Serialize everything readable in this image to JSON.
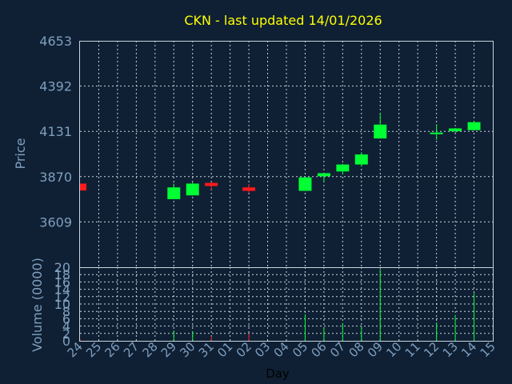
{
  "chart_data": {
    "type": "candlestick",
    "title": "CKN - last updated 14/01/2026",
    "xlabel": "Day",
    "ylabel": "Price",
    "volume_label": "Volume (0000)",
    "x_tick_labels": [
      "24",
      "25",
      "26",
      "27",
      "28",
      "29",
      "30",
      "31",
      "01",
      "02",
      "03",
      "04",
      "05",
      "06",
      "07",
      "08",
      "09",
      "10",
      "11",
      "12",
      "13",
      "14",
      "15"
    ],
    "y_ticks": [
      3609,
      3870,
      4131,
      4392,
      4653
    ],
    "ylim": [
      3348,
      4653
    ],
    "volume_ticks": [
      0,
      2,
      4,
      6,
      8,
      10,
      12,
      14,
      16,
      18,
      20
    ],
    "volume_ylim": [
      0,
      20
    ],
    "grid": true,
    "colors": {
      "up": "#00ff33",
      "down": "#ff1a1a",
      "title": "#ffff00",
      "axis_text": "#7f9fbf",
      "background": "#0f2034"
    },
    "candles": [
      {
        "day": "24",
        "open": 3830,
        "close": 3790,
        "high": 3830,
        "low": 3790,
        "volume": 0.5
      },
      {
        "day": "29",
        "open": 3740,
        "close": 3808,
        "high": 3830,
        "low": 3740,
        "volume": 2.8
      },
      {
        "day": "30",
        "open": 3762,
        "close": 3830,
        "high": 3836,
        "low": 3762,
        "volume": 2.6
      },
      {
        "day": "31",
        "open": 3834,
        "close": 3816,
        "high": 3838,
        "low": 3796,
        "volume": 1.2
      },
      {
        "day": "02",
        "open": 3808,
        "close": 3788,
        "high": 3828,
        "low": 3776,
        "volume": 2.0
      },
      {
        "day": "05",
        "open": 3788,
        "close": 3866,
        "high": 3866,
        "low": 3788,
        "volume": 7.2
      },
      {
        "day": "06",
        "open": 3872,
        "close": 3890,
        "high": 3890,
        "low": 3842,
        "volume": 3.6
      },
      {
        "day": "07",
        "open": 3900,
        "close": 3940,
        "high": 3944,
        "low": 3884,
        "volume": 4.8
      },
      {
        "day": "08",
        "open": 3940,
        "close": 3998,
        "high": 4010,
        "low": 3928,
        "volume": 3.9
      },
      {
        "day": "09",
        "open": 4090,
        "close": 4170,
        "high": 4236,
        "low": 4090,
        "volume": 19.5
      },
      {
        "day": "12",
        "open": 4118,
        "close": 4124,
        "high": 4172,
        "low": 4082,
        "volume": 5.0
      },
      {
        "day": "13",
        "open": 4132,
        "close": 4148,
        "high": 4150,
        "low": 4122,
        "volume": 7.0
      },
      {
        "day": "14",
        "open": 4138,
        "close": 4184,
        "high": 4190,
        "low": 4138,
        "volume": 13.0
      }
    ]
  }
}
